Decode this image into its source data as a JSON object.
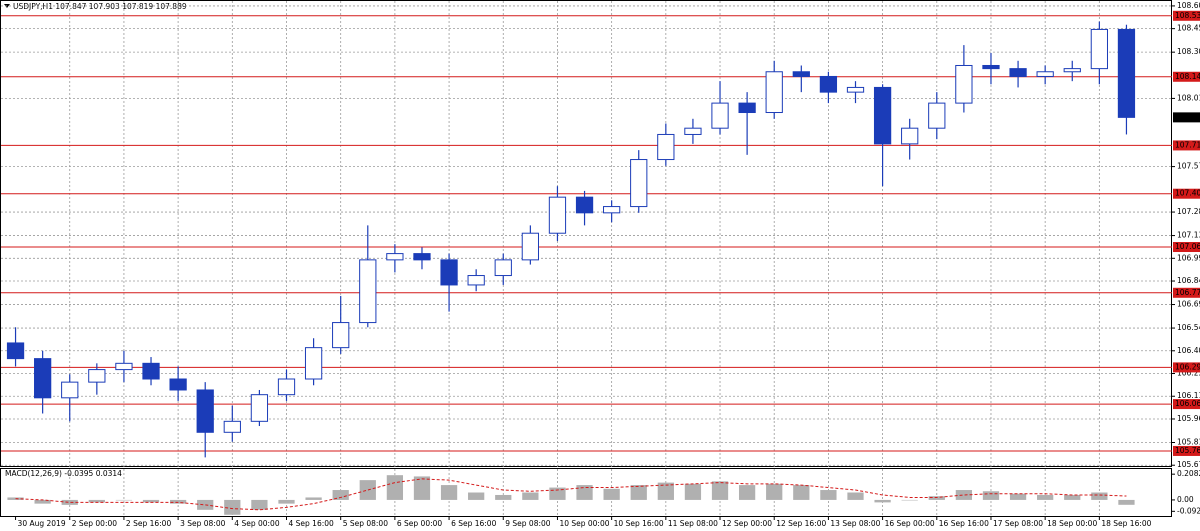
{
  "chart_data": [
    {
      "type": "candlestick",
      "title": "USDJPY,H1",
      "title_values": [
        107.847,
        107.903,
        107.819,
        107.889
      ],
      "categories": [
        "30 Aug 2019",
        null,
        "2 Sep 00:00",
        null,
        "2 Sep 16:00",
        null,
        "3 Sep 08:00",
        null,
        "4 Sep 00:00",
        null,
        "4 Sep 16:00",
        null,
        "5 Sep 08:00",
        null,
        "6 Sep 00:00",
        null,
        "6 Sep 16:00",
        null,
        "9 Sep 08:00",
        null,
        "10 Sep 00:00",
        null,
        "10 Sep 16:00",
        null,
        "11 Sep 08:00",
        null,
        "12 Sep 00:00",
        null,
        "12 Sep 16:00",
        null,
        "13 Sep 08:00",
        null,
        "16 Sep 00:00",
        null,
        "16 Sep 16:00",
        null,
        "17 Sep 08:00",
        null,
        "18 Sep 00:00",
        null,
        "18 Sep 16:00",
        null
      ],
      "open": [
        106.45,
        106.35,
        106.1,
        106.2,
        106.28,
        106.32,
        106.22,
        106.15,
        105.88,
        105.95,
        106.12,
        106.22,
        106.42,
        106.58,
        106.98,
        107.02,
        106.98,
        106.82,
        106.88,
        106.98,
        107.15,
        107.38,
        107.28,
        107.32,
        107.62,
        107.78,
        107.82,
        107.98,
        107.92,
        108.18,
        108.15,
        108.05,
        108.08,
        107.72,
        107.82,
        107.98,
        108.22,
        108.2,
        108.15,
        108.18,
        108.2,
        108.45
      ],
      "high": [
        106.55,
        106.4,
        106.25,
        106.32,
        106.4,
        106.36,
        106.3,
        106.2,
        106.05,
        106.15,
        106.28,
        106.48,
        106.75,
        107.2,
        107.08,
        107.06,
        107.02,
        106.92,
        107.02,
        107.2,
        107.45,
        107.42,
        107.36,
        107.68,
        107.85,
        107.88,
        108.12,
        108.05,
        108.25,
        108.22,
        108.18,
        108.12,
        108.1,
        107.88,
        108.05,
        108.35,
        108.3,
        108.25,
        108.22,
        108.25,
        108.5,
        108.48
      ],
      "low": [
        106.3,
        106.0,
        105.95,
        106.12,
        106.2,
        106.18,
        106.08,
        105.72,
        105.82,
        105.92,
        106.08,
        106.18,
        106.38,
        106.55,
        106.9,
        106.92,
        106.65,
        106.78,
        106.82,
        106.95,
        107.1,
        107.2,
        107.22,
        107.28,
        107.58,
        107.72,
        107.78,
        107.65,
        107.88,
        108.05,
        107.98,
        107.98,
        107.45,
        107.62,
        107.75,
        107.92,
        108.1,
        108.08,
        108.1,
        108.12,
        108.1,
        107.78
      ],
      "close": [
        106.35,
        106.1,
        106.2,
        106.28,
        106.32,
        106.22,
        106.15,
        105.88,
        105.95,
        106.12,
        106.22,
        106.42,
        106.58,
        106.98,
        107.02,
        106.98,
        106.82,
        106.88,
        106.98,
        107.15,
        107.38,
        107.28,
        107.32,
        107.62,
        107.78,
        107.82,
        107.98,
        107.92,
        108.18,
        108.15,
        108.05,
        108.08,
        107.72,
        107.82,
        107.98,
        108.22,
        108.2,
        108.15,
        108.18,
        108.2,
        108.45,
        107.889
      ],
      "ylim": [
        105.665,
        108.625
      ],
      "yticks": [
        {
          "value": 108.6,
          "label": "108.600"
        },
        108.455,
        108.305,
        {
          "value": 108.01,
          "label": "108.010"
        },
        107.575,
        107.285,
        107.135,
        {
          "value": 106.99,
          "label": "106.990"
        },
        106.845,
        106.695,
        106.545,
        {
          "value": 106.4,
          "label": "106.400"
        },
        106.255,
        {
          "value": 106.11,
          "label": "106.110"
        },
        105.965,
        105.815,
        {
          "value": 105.67,
          "label": "105.670"
        }
      ],
      "levels": [
        108.537,
        108.148,
        {
          "value": 107.71,
          "label": "107.710"
        },
        107.402,
        107.062,
        {
          "value": 106.77,
          "label": "106.770"
        },
        106.294,
        {
          "value": 106.06,
          "label": "106.060"
        },
        105.761
      ],
      "grid": true,
      "color": "#1b3cb8",
      "level_color": "#d41a1a"
    },
    {
      "type": "macd",
      "title": "MACD(12,26,9)",
      "histogram": [
        0.02,
        -0.03,
        -0.04,
        -0.02,
        0.0,
        -0.02,
        -0.03,
        -0.08,
        -0.12,
        -0.08,
        -0.03,
        0.02,
        0.08,
        0.16,
        0.2,
        0.19,
        0.12,
        0.06,
        0.04,
        0.06,
        0.1,
        0.12,
        0.09,
        0.12,
        0.14,
        0.13,
        0.15,
        0.12,
        0.13,
        0.12,
        0.08,
        0.06,
        -0.02,
        0.0,
        0.03,
        0.08,
        0.07,
        0.05,
        0.04,
        0.04,
        0.06,
        -0.0395
      ],
      "signal": [
        0.01,
        0.0,
        -0.02,
        -0.02,
        -0.02,
        -0.02,
        -0.02,
        -0.04,
        -0.07,
        -0.08,
        -0.06,
        -0.03,
        0.02,
        0.08,
        0.14,
        0.17,
        0.16,
        0.12,
        0.08,
        0.07,
        0.08,
        0.1,
        0.1,
        0.11,
        0.12,
        0.13,
        0.14,
        0.13,
        0.13,
        0.12,
        0.1,
        0.08,
        0.04,
        0.02,
        0.02,
        0.04,
        0.05,
        0.05,
        0.05,
        0.04,
        0.04,
        0.0314
      ],
      "ylim": [
        -0.13,
        0.25
      ],
      "yticks": [
        0.2082,
        {
          "value": 0,
          "label": "0.00"
        },
        -0.0921
      ],
      "histogram_color": "#b0b0b0",
      "signal_color": "#d41a1a"
    }
  ]
}
